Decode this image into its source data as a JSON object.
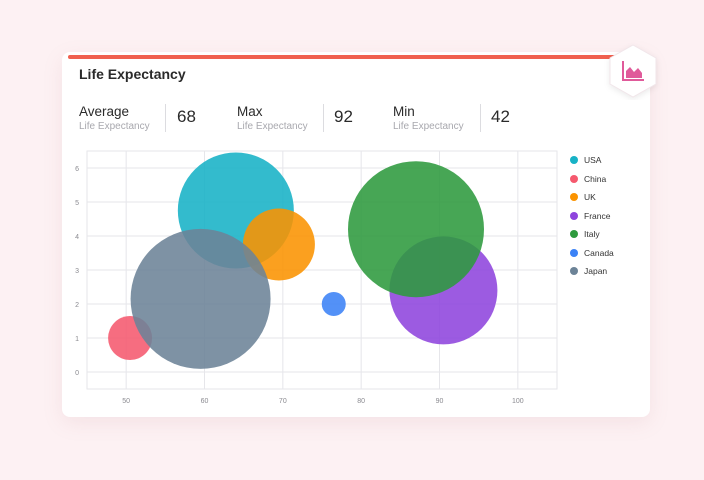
{
  "card": {
    "title": "Life Expectancy",
    "accent_color": "#f0604f"
  },
  "stats": [
    {
      "label": "Average",
      "sublabel": "Life Expectancy",
      "value": "68"
    },
    {
      "label": "Max",
      "sublabel": "Life Expectancy",
      "value": "92"
    },
    {
      "label": "Min",
      "sublabel": "Life Expectancy",
      "value": "42"
    }
  ],
  "badge": {
    "icon": "area-chart-icon",
    "color": "#e05a9a"
  },
  "chart_data": {
    "type": "scatter",
    "subtype": "bubble",
    "title": "Life Expectancy",
    "xlabel": "",
    "ylabel": "",
    "xlim": [
      45,
      105
    ],
    "ylim": [
      -0.5,
      6.5
    ],
    "xticks": [
      "50",
      "60",
      "70",
      "80",
      "90",
      "100"
    ],
    "yticks": [
      "0",
      "1",
      "2",
      "3",
      "4",
      "5",
      "6"
    ],
    "grid": true,
    "legend_position": "right",
    "series": [
      {
        "name": "USA",
        "color": "#17b2c6",
        "x": 64,
        "y": 4.75,
        "size": 14.5
      },
      {
        "name": "China",
        "color": "#f5596e",
        "x": 50.5,
        "y": 1.0,
        "size": 5.5
      },
      {
        "name": "UK",
        "color": "#fb9300",
        "x": 69.5,
        "y": 3.75,
        "size": 9
      },
      {
        "name": "France",
        "color": "#8e44dd",
        "x": 90.5,
        "y": 2.4,
        "size": 13.5
      },
      {
        "name": "Italy",
        "color": "#2e9a3e",
        "x": 87,
        "y": 4.2,
        "size": 17
      },
      {
        "name": "Canada",
        "color": "#3b82f6",
        "x": 76.5,
        "y": 2.0,
        "size": 3.0
      },
      {
        "name": "Japan",
        "color": "#6c8397",
        "x": 59.5,
        "y": 2.15,
        "size": 17.5
      }
    ]
  }
}
